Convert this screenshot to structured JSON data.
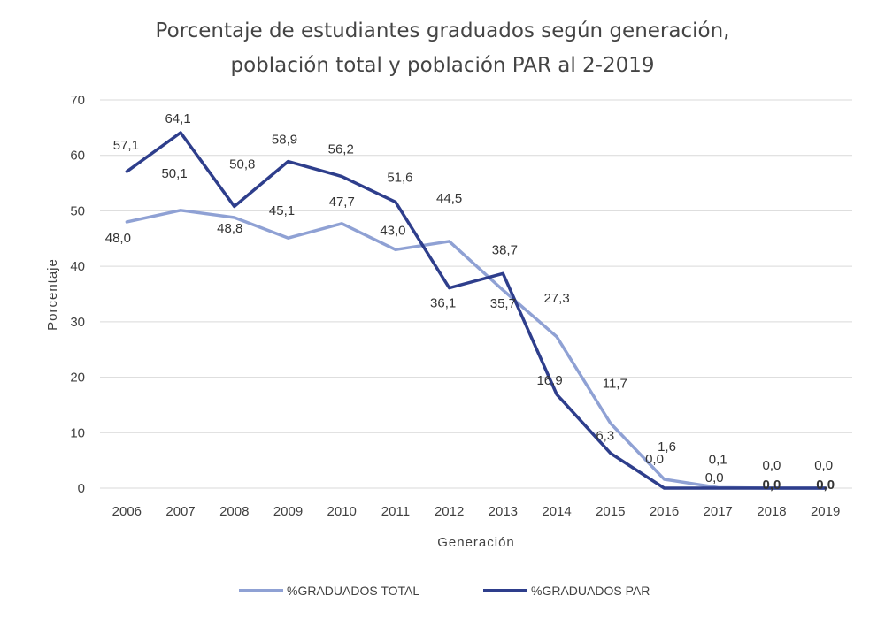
{
  "chart_data": {
    "type": "line",
    "title_lines": [
      "Porcentaje de estudiantes graduados según generación,",
      "población total y población PAR al 2-2019"
    ],
    "xlabel": "Generación",
    "ylabel": "Porcentaje",
    "ylim": [
      0,
      70
    ],
    "yticks": [
      "0",
      "10",
      "20",
      "30",
      "40",
      "50",
      "60",
      "70"
    ],
    "grid": true,
    "legend_position": "bottom",
    "categories": [
      "2006",
      "2007",
      "2008",
      "2009",
      "2010",
      "2011",
      "2012",
      "2013",
      "2014",
      "2015",
      "2016",
      "2017",
      "2018",
      "2019"
    ],
    "series": [
      {
        "name": "%GRADUADOS TOTAL",
        "color": "#8fa1d4",
        "values": [
          48.0,
          50.1,
          48.8,
          45.1,
          47.7,
          43.0,
          44.5,
          35.7,
          27.3,
          11.7,
          1.6,
          0.1,
          0.0,
          0.0
        ],
        "labels": [
          "48,0",
          "50,1",
          "48,8",
          "45,1",
          "47,7",
          "43,0",
          "44,5",
          "35,7",
          "27,3",
          "11,7",
          "1,6",
          "0,1",
          "0,0",
          "0,0"
        ]
      },
      {
        "name": "%GRADUADOS PAR",
        "color": "#2e3e8c",
        "values": [
          57.1,
          64.1,
          50.8,
          58.9,
          56.2,
          51.6,
          36.1,
          38.7,
          16.9,
          6.3,
          0.0,
          0.0,
          0.0,
          0.0
        ],
        "labels": [
          "57,1",
          "64,1",
          "50,8",
          "58,9",
          "56,2",
          "51,6",
          "36,1",
          "38,7",
          "16,9",
          "6,3",
          "0,0",
          "0,0",
          "0,0",
          "0,0"
        ]
      }
    ]
  }
}
